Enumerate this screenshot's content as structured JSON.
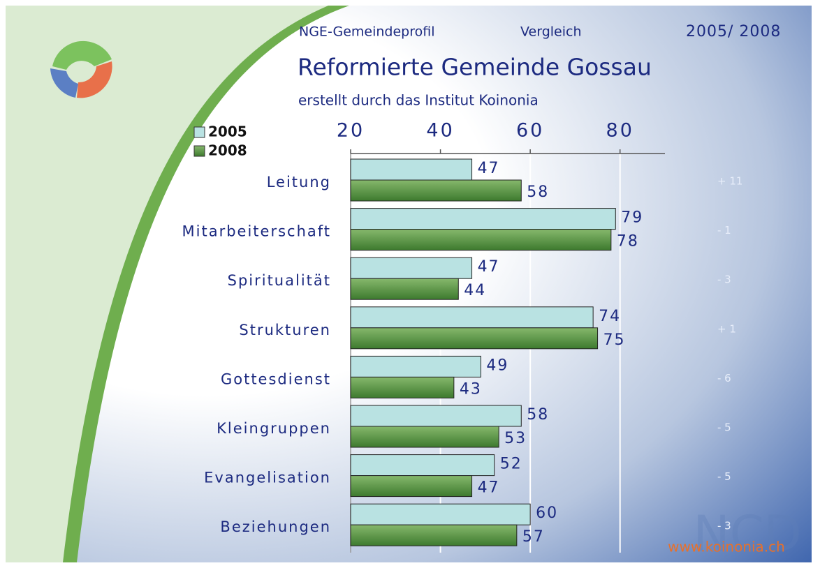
{
  "chart_data": {
    "type": "bar",
    "orientation": "horizontal",
    "header": [
      "NGE-Gemeindeprofil",
      "Vergleich",
      "2005/ 2008"
    ],
    "title": "Reformierte Gemeinde Gossau",
    "subtitle": "erstellt durch das Institut Koinonia",
    "categories": [
      "Leitung",
      "Mitarbeiterschaft",
      "Spiritualität",
      "Strukturen",
      "Gottesdienst",
      "Kleingruppen",
      "Evangelisation",
      "Beziehungen"
    ],
    "series": [
      {
        "name": "2005",
        "color": "#b9e2e2",
        "values": [
          47,
          79,
          47,
          74,
          49,
          58,
          52,
          60
        ]
      },
      {
        "name": "2008",
        "color": "#4f8c3c",
        "values": [
          58,
          78,
          44,
          75,
          43,
          53,
          47,
          57
        ]
      }
    ],
    "differences": [
      "+ 11",
      "- 1",
      "- 3",
      "+ 1",
      "- 6",
      "- 5",
      "- 5",
      "- 3"
    ],
    "xlim": [
      20,
      90
    ],
    "xticks": [
      20,
      40,
      60,
      80
    ],
    "grid": true,
    "footer": "www.koinonia.ch",
    "watermark": "NCD"
  }
}
